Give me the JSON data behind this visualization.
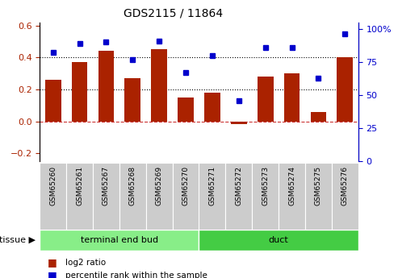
{
  "title": "GDS2115 / 11864",
  "samples": [
    "GSM65260",
    "GSM65261",
    "GSM65267",
    "GSM65268",
    "GSM65269",
    "GSM65270",
    "GSM65271",
    "GSM65272",
    "GSM65273",
    "GSM65274",
    "GSM65275",
    "GSM65276"
  ],
  "log2_ratio": [
    0.26,
    0.37,
    0.44,
    0.27,
    0.45,
    0.15,
    0.18,
    -0.02,
    0.28,
    0.3,
    0.06,
    0.4
  ],
  "percentile_rank": [
    82,
    89,
    90,
    77,
    91,
    67,
    80,
    46,
    86,
    86,
    63,
    96
  ],
  "bar_color": "#aa2200",
  "dot_color": "#0000cc",
  "ylim_left": [
    -0.25,
    0.62
  ],
  "ylim_right": [
    0,
    105
  ],
  "yticks_left": [
    -0.2,
    0.0,
    0.2,
    0.4,
    0.6
  ],
  "yticks_right": [
    0,
    25,
    50,
    75,
    100
  ],
  "ytick_right_labels": [
    "0",
    "25",
    "50",
    "75",
    "100%"
  ],
  "hlines": [
    0.2,
    0.4
  ],
  "tissue_groups": [
    {
      "label": "terminal end bud",
      "start": 0,
      "end": 6,
      "color": "#88ee88"
    },
    {
      "label": "duct",
      "start": 6,
      "end": 12,
      "color": "#44cc44"
    }
  ],
  "tissue_label": "tissue",
  "legend_bar_label": "log2 ratio",
  "legend_dot_label": "percentile rank within the sample",
  "bg_color": "#ffffff",
  "zero_line_color": "#cc3333",
  "bar_width": 0.6,
  "sample_box_color": "#cccccc",
  "tissue_arrow": "▶"
}
